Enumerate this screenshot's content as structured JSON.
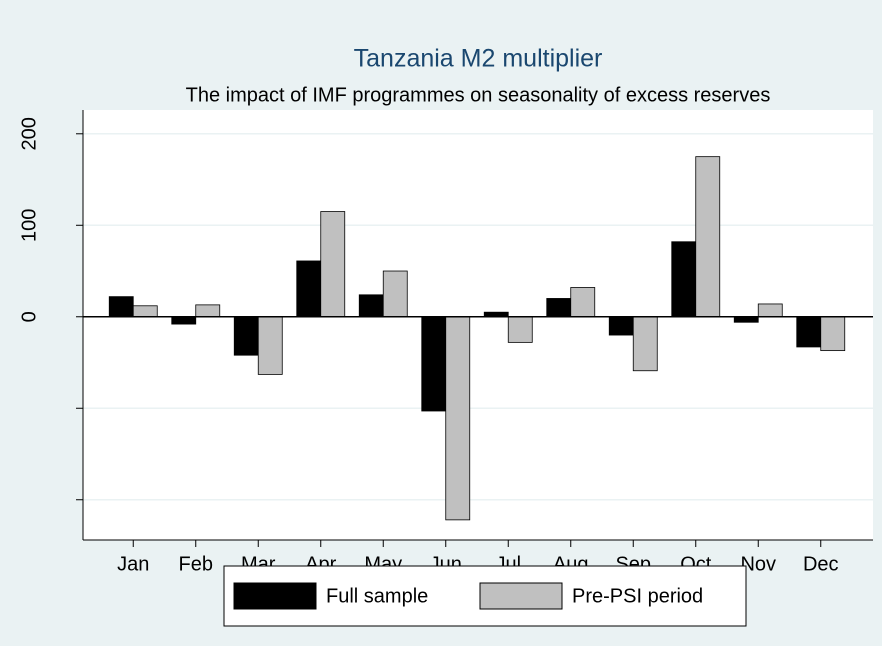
{
  "chart_data": {
    "type": "bar",
    "title": "Tanzania M2 multiplier",
    "subtitle": "The impact of IMF programmes on seasonality of excess reserves",
    "categories": [
      "Jan",
      "Feb",
      "Mar",
      "Apr",
      "May",
      "Jun",
      "Jul",
      "Aug",
      "Sep",
      "Oct",
      "Nov",
      "Dec"
    ],
    "series": [
      {
        "name": "Full sample",
        "color": "#000000",
        "values": [
          22,
          -8,
          -42,
          61,
          24,
          -103,
          5,
          20,
          -20,
          82,
          -6,
          -33
        ]
      },
      {
        "name": "Pre-PSI period",
        "color": "#c0c0c0",
        "values": [
          12,
          13,
          -63,
          115,
          50,
          -222,
          -28,
          32,
          -59,
          175,
          14,
          -37
        ]
      }
    ],
    "ylim": [
      -244,
      226
    ],
    "yticks": [
      0,
      100,
      200
    ],
    "unlabeled_yticks": [
      -100,
      -200
    ],
    "grid": true,
    "legend": "bottom"
  }
}
